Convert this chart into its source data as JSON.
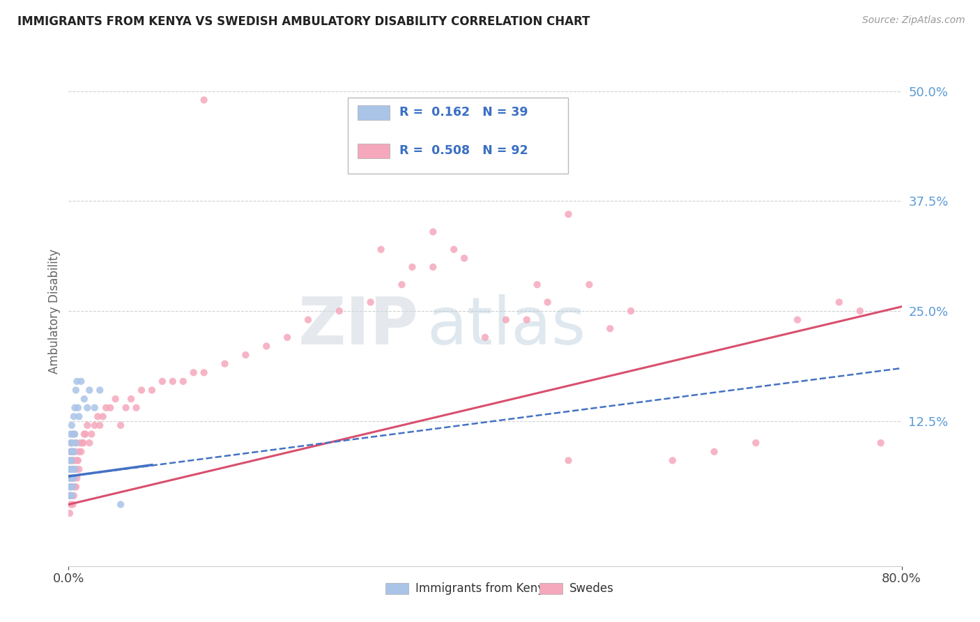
{
  "title": "IMMIGRANTS FROM KENYA VS SWEDISH AMBULATORY DISABILITY CORRELATION CHART",
  "source": "Source: ZipAtlas.com",
  "ylabel": "Ambulatory Disability",
  "xlim": [
    0.0,
    0.8
  ],
  "ylim": [
    -0.04,
    0.54
  ],
  "ytick_labels": [
    "12.5%",
    "25.0%",
    "37.5%",
    "50.0%"
  ],
  "ytick_values": [
    0.125,
    0.25,
    0.375,
    0.5
  ],
  "legend_r1": "R =  0.162   N = 39",
  "legend_r2": "R =  0.508   N = 92",
  "legend_label1": "Immigrants from Kenya",
  "legend_label2": "Swedes",
  "color_kenya": "#aac4e8",
  "color_swedes": "#f5a8bc",
  "color_kenya_line": "#4472c4",
  "color_swedes_line": "#d94f6e",
  "watermark_zip": "ZIP",
  "watermark_atlas": "atlas",
  "background_color": "#ffffff",
  "grid_color": "#cccccc",
  "kenya_x": [
    0.001,
    0.001,
    0.001,
    0.001,
    0.001,
    0.002,
    0.002,
    0.002,
    0.002,
    0.002,
    0.002,
    0.003,
    0.003,
    0.003,
    0.003,
    0.003,
    0.003,
    0.004,
    0.004,
    0.004,
    0.004,
    0.005,
    0.005,
    0.005,
    0.006,
    0.006,
    0.006,
    0.007,
    0.007,
    0.008,
    0.009,
    0.01,
    0.012,
    0.015,
    0.018,
    0.02,
    0.025,
    0.03,
    0.05
  ],
  "kenya_y": [
    0.04,
    0.05,
    0.06,
    0.07,
    0.08,
    0.04,
    0.05,
    0.07,
    0.09,
    0.1,
    0.11,
    0.04,
    0.06,
    0.08,
    0.09,
    0.1,
    0.12,
    0.05,
    0.07,
    0.09,
    0.11,
    0.06,
    0.09,
    0.13,
    0.07,
    0.11,
    0.14,
    0.1,
    0.16,
    0.17,
    0.14,
    0.13,
    0.17,
    0.15,
    0.14,
    0.16,
    0.14,
    0.16,
    0.03
  ],
  "swedes_x": [
    0.001,
    0.001,
    0.001,
    0.001,
    0.002,
    0.002,
    0.002,
    0.002,
    0.002,
    0.003,
    0.003,
    0.003,
    0.003,
    0.003,
    0.004,
    0.004,
    0.004,
    0.004,
    0.005,
    0.005,
    0.005,
    0.005,
    0.006,
    0.006,
    0.006,
    0.007,
    0.007,
    0.007,
    0.008,
    0.008,
    0.009,
    0.01,
    0.01,
    0.011,
    0.012,
    0.013,
    0.014,
    0.015,
    0.016,
    0.018,
    0.02,
    0.022,
    0.025,
    0.028,
    0.03,
    0.033,
    0.036,
    0.04,
    0.045,
    0.05,
    0.055,
    0.06,
    0.065,
    0.07,
    0.08,
    0.09,
    0.1,
    0.11,
    0.12,
    0.13,
    0.15,
    0.17,
    0.19,
    0.21,
    0.23,
    0.26,
    0.29,
    0.32,
    0.35,
    0.38,
    0.42,
    0.46,
    0.5,
    0.54,
    0.58,
    0.62,
    0.66,
    0.7,
    0.74,
    0.78,
    0.3,
    0.35,
    0.4,
    0.44,
    0.48,
    0.52,
    0.33,
    0.37,
    0.45,
    0.48,
    0.13,
    0.76
  ],
  "swedes_y": [
    0.02,
    0.04,
    0.06,
    0.07,
    0.03,
    0.05,
    0.06,
    0.08,
    0.09,
    0.04,
    0.06,
    0.07,
    0.09,
    0.1,
    0.03,
    0.06,
    0.08,
    0.09,
    0.04,
    0.06,
    0.08,
    0.11,
    0.05,
    0.07,
    0.09,
    0.05,
    0.07,
    0.1,
    0.06,
    0.08,
    0.08,
    0.07,
    0.09,
    0.1,
    0.09,
    0.1,
    0.1,
    0.11,
    0.11,
    0.12,
    0.1,
    0.11,
    0.12,
    0.13,
    0.12,
    0.13,
    0.14,
    0.14,
    0.15,
    0.12,
    0.14,
    0.15,
    0.14,
    0.16,
    0.16,
    0.17,
    0.17,
    0.17,
    0.18,
    0.18,
    0.19,
    0.2,
    0.21,
    0.22,
    0.24,
    0.25,
    0.26,
    0.28,
    0.3,
    0.31,
    0.24,
    0.26,
    0.28,
    0.25,
    0.08,
    0.09,
    0.1,
    0.24,
    0.26,
    0.1,
    0.32,
    0.34,
    0.22,
    0.24,
    0.36,
    0.23,
    0.3,
    0.32,
    0.28,
    0.08,
    0.49,
    0.25
  ],
  "kenya_line_x": [
    0.0,
    0.8
  ],
  "kenya_line_y": [
    0.055,
    0.185
  ],
  "swedes_line_x": [
    0.0,
    0.8
  ],
  "swedes_line_y": [
    0.03,
    0.255
  ]
}
